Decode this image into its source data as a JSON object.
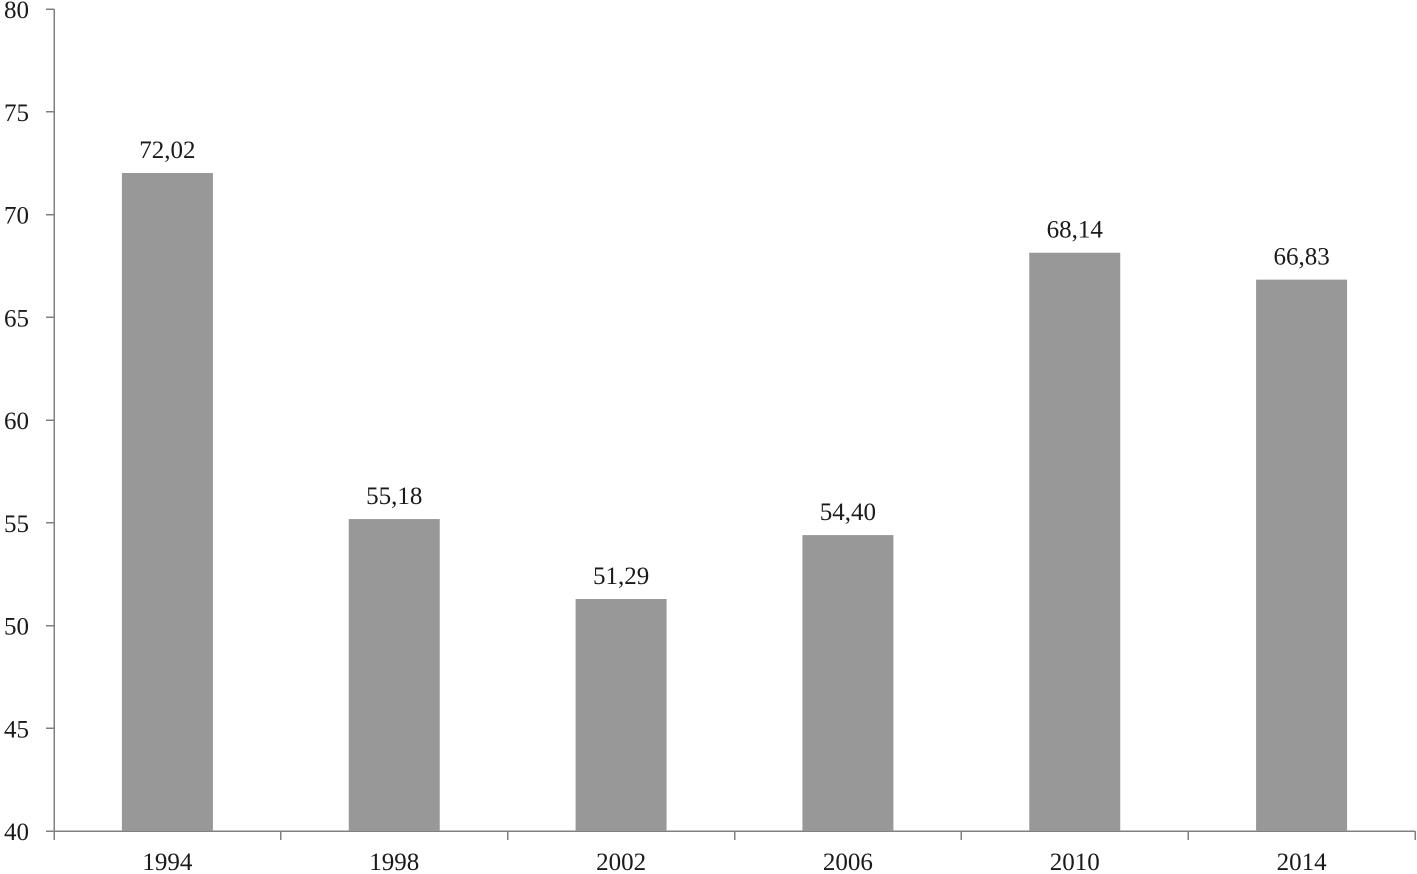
{
  "chart_data": {
    "type": "bar",
    "title": "",
    "xlabel": "",
    "ylabel": "",
    "categories": [
      "1994",
      "1998",
      "2002",
      "2006",
      "2010",
      "2014"
    ],
    "values": [
      72.02,
      55.18,
      51.29,
      54.4,
      68.14,
      66.83
    ],
    "data_labels": [
      "72,02",
      "55,18",
      "51,29",
      "54,40",
      "68,14",
      "66,83"
    ],
    "ylim": [
      40,
      80
    ],
    "yticks": [
      40,
      45,
      50,
      55,
      60,
      65,
      70,
      75,
      80
    ],
    "ytick_labels": [
      "40",
      "45",
      "50",
      "55",
      "60",
      "65",
      "70",
      "75",
      "80"
    ],
    "grid": false,
    "legend": "none",
    "bar_color": "#989898",
    "axis_color": "#808080"
  }
}
